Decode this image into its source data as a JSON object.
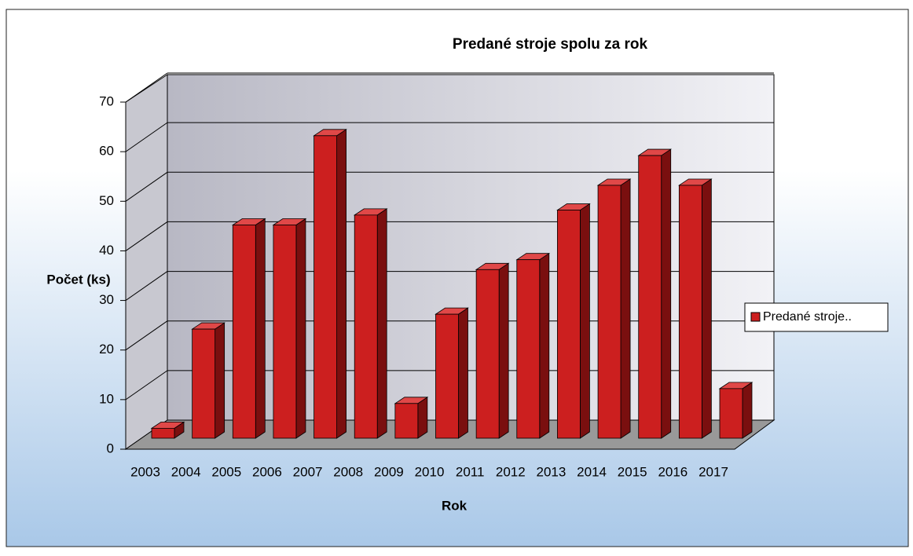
{
  "chart_data": {
    "type": "bar",
    "title": "Predané stroje spolu za rok",
    "x_label": "Rok",
    "y_label": "Počet (ks)",
    "categories": [
      "2003",
      "2004",
      "2005",
      "2006",
      "2007",
      "2008",
      "2009",
      "2010",
      "2011",
      "2012",
      "2013",
      "2014",
      "2015",
      "2016",
      "2017"
    ],
    "series": [
      {
        "name": "Predané stroje..",
        "color": "#cc1f1f",
        "values": [
          2,
          22,
          43,
          43,
          61,
          45,
          7,
          25,
          34,
          36,
          46,
          51,
          57,
          51,
          10
        ]
      }
    ],
    "ylim": [
      0,
      70
    ],
    "yticks": [
      0,
      10,
      20,
      30,
      40,
      50,
      60,
      70
    ],
    "grid": true,
    "legend": "right"
  }
}
